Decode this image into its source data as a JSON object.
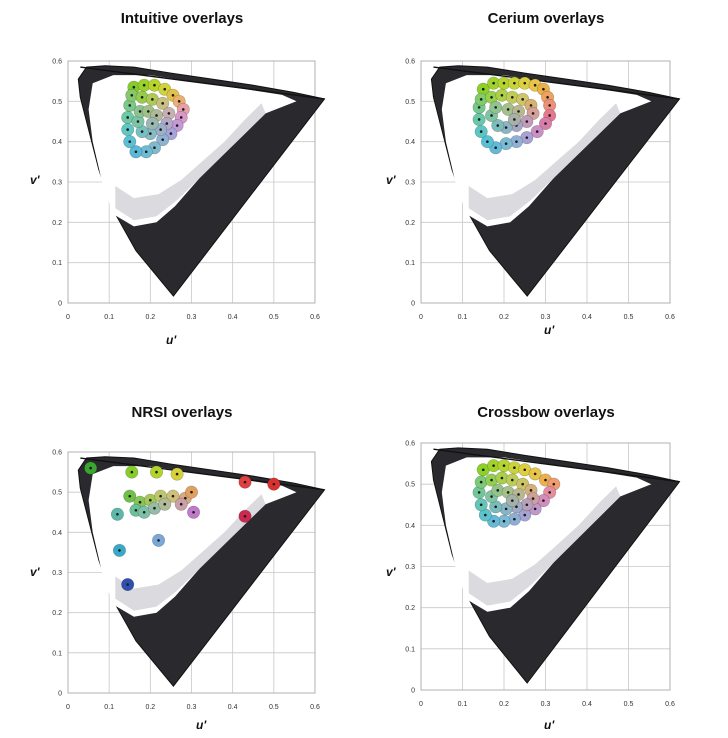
{
  "chart_data": [
    {
      "type": "scatter",
      "title": "Intuitive overlays",
      "xlabel": "u'",
      "ylabel": "v'",
      "xlim": [
        0,
        0.6
      ],
      "ylim": [
        0,
        0.6
      ],
      "xticks": [
        "0",
        "0.1",
        "0.2",
        "0.3",
        "0.4",
        "0.5",
        "0.6"
      ],
      "yticks": [
        "0",
        "0.1",
        "0.2",
        "0.3",
        "0.4",
        "0.5",
        "0.6"
      ],
      "grid": true,
      "points": [
        {
          "u": 0.16,
          "v": 0.535,
          "color": "#86cc2a"
        },
        {
          "u": 0.185,
          "v": 0.54,
          "color": "#9ad02a"
        },
        {
          "u": 0.21,
          "v": 0.54,
          "color": "#b6d42c"
        },
        {
          "u": 0.235,
          "v": 0.53,
          "color": "#d0d43a"
        },
        {
          "u": 0.255,
          "v": 0.515,
          "color": "#e2c04a"
        },
        {
          "u": 0.27,
          "v": 0.5,
          "color": "#eab070"
        },
        {
          "u": 0.28,
          "v": 0.48,
          "color": "#e6a0a8"
        },
        {
          "u": 0.275,
          "v": 0.46,
          "color": "#d898c8"
        },
        {
          "u": 0.265,
          "v": 0.44,
          "color": "#c49ad6"
        },
        {
          "u": 0.25,
          "v": 0.42,
          "color": "#a6a4d8"
        },
        {
          "u": 0.23,
          "v": 0.405,
          "color": "#90b2d2"
        },
        {
          "u": 0.21,
          "v": 0.385,
          "color": "#80bacc"
        },
        {
          "u": 0.19,
          "v": 0.375,
          "color": "#6ebcd4"
        },
        {
          "u": 0.165,
          "v": 0.375,
          "color": "#5ab8d8"
        },
        {
          "u": 0.15,
          "v": 0.4,
          "color": "#5cc0d2"
        },
        {
          "u": 0.145,
          "v": 0.43,
          "color": "#62c6c2"
        },
        {
          "u": 0.145,
          "v": 0.46,
          "color": "#6ccaa6"
        },
        {
          "u": 0.15,
          "v": 0.49,
          "color": "#7ac88a"
        },
        {
          "u": 0.155,
          "v": 0.515,
          "color": "#86c86a"
        },
        {
          "u": 0.18,
          "v": 0.51,
          "color": "#96cc4a"
        },
        {
          "u": 0.205,
          "v": 0.505,
          "color": "#b0c858"
        },
        {
          "u": 0.23,
          "v": 0.495,
          "color": "#c8c080"
        },
        {
          "u": 0.245,
          "v": 0.47,
          "color": "#c8b0b0"
        },
        {
          "u": 0.24,
          "v": 0.445,
          "color": "#b4a8c8"
        },
        {
          "u": 0.225,
          "v": 0.43,
          "color": "#9cb0c8"
        },
        {
          "u": 0.2,
          "v": 0.42,
          "color": "#86bac6"
        },
        {
          "u": 0.18,
          "v": 0.425,
          "color": "#78c0c0"
        },
        {
          "u": 0.17,
          "v": 0.45,
          "color": "#7cc4a8"
        },
        {
          "u": 0.175,
          "v": 0.475,
          "color": "#8cc490"
        },
        {
          "u": 0.195,
          "v": 0.475,
          "color": "#a0c08a"
        },
        {
          "u": 0.215,
          "v": 0.465,
          "color": "#b0b89c"
        },
        {
          "u": 0.205,
          "v": 0.445,
          "color": "#98b8b0"
        }
      ]
    },
    {
      "type": "scatter",
      "title": "Cerium overlays",
      "xlabel": "u'",
      "ylabel": "v'",
      "xlim": [
        0,
        0.6
      ],
      "ylim": [
        0,
        0.6
      ],
      "xticks": [
        "0",
        "0.1",
        "0.2",
        "0.3",
        "0.4",
        "0.5",
        "0.6"
      ],
      "yticks": [
        "0",
        "0.1",
        "0.2",
        "0.3",
        "0.4",
        "0.5",
        "0.6"
      ],
      "grid": true,
      "points": [
        {
          "u": 0.15,
          "v": 0.53,
          "color": "#8ed02a"
        },
        {
          "u": 0.175,
          "v": 0.545,
          "color": "#9ed22c"
        },
        {
          "u": 0.2,
          "v": 0.545,
          "color": "#b4d430"
        },
        {
          "u": 0.225,
          "v": 0.545,
          "color": "#c8d438"
        },
        {
          "u": 0.25,
          "v": 0.545,
          "color": "#dcd040"
        },
        {
          "u": 0.275,
          "v": 0.54,
          "color": "#e8c448"
        },
        {
          "u": 0.295,
          "v": 0.53,
          "color": "#ecb048"
        },
        {
          "u": 0.305,
          "v": 0.51,
          "color": "#f0a060"
        },
        {
          "u": 0.31,
          "v": 0.49,
          "color": "#ec9078"
        },
        {
          "u": 0.31,
          "v": 0.465,
          "color": "#e47890"
        },
        {
          "u": 0.3,
          "v": 0.445,
          "color": "#d87ca8"
        },
        {
          "u": 0.28,
          "v": 0.425,
          "color": "#c890c4"
        },
        {
          "u": 0.255,
          "v": 0.41,
          "color": "#a8a2d4"
        },
        {
          "u": 0.23,
          "v": 0.4,
          "color": "#90b0d4"
        },
        {
          "u": 0.205,
          "v": 0.395,
          "color": "#7cbad4"
        },
        {
          "u": 0.18,
          "v": 0.385,
          "color": "#62bad8"
        },
        {
          "u": 0.16,
          "v": 0.4,
          "color": "#58c0d4"
        },
        {
          "u": 0.145,
          "v": 0.425,
          "color": "#5cc6c4"
        },
        {
          "u": 0.14,
          "v": 0.455,
          "color": "#66caaa"
        },
        {
          "u": 0.14,
          "v": 0.485,
          "color": "#74ca8c"
        },
        {
          "u": 0.145,
          "v": 0.505,
          "color": "#80cc6c"
        },
        {
          "u": 0.17,
          "v": 0.51,
          "color": "#96d04c"
        },
        {
          "u": 0.195,
          "v": 0.515,
          "color": "#acd048"
        },
        {
          "u": 0.22,
          "v": 0.51,
          "color": "#c0cc58"
        },
        {
          "u": 0.245,
          "v": 0.505,
          "color": "#d0c468"
        },
        {
          "u": 0.265,
          "v": 0.49,
          "color": "#d8b070"
        },
        {
          "u": 0.27,
          "v": 0.47,
          "color": "#d4a098"
        },
        {
          "u": 0.255,
          "v": 0.45,
          "color": "#c09cb8"
        },
        {
          "u": 0.23,
          "v": 0.44,
          "color": "#a4a8c4"
        },
        {
          "u": 0.205,
          "v": 0.435,
          "color": "#8cb4c4"
        },
        {
          "u": 0.185,
          "v": 0.44,
          "color": "#7cbcbc"
        },
        {
          "u": 0.17,
          "v": 0.465,
          "color": "#80c4a4"
        },
        {
          "u": 0.18,
          "v": 0.485,
          "color": "#90c48c"
        },
        {
          "u": 0.21,
          "v": 0.48,
          "color": "#a4c08c"
        },
        {
          "u": 0.235,
          "v": 0.475,
          "color": "#b8b890"
        },
        {
          "u": 0.225,
          "v": 0.455,
          "color": "#a8b0a8"
        }
      ]
    },
    {
      "type": "scatter",
      "title": "NRSI overlays",
      "xlabel": "u'",
      "ylabel": "v'",
      "xlim": [
        0,
        0.6
      ],
      "ylim": [
        0,
        0.6
      ],
      "xticks": [
        "0",
        "0.1",
        "0.2",
        "0.3",
        "0.4",
        "0.5",
        "0.6"
      ],
      "yticks": [
        "0",
        "0.1",
        "0.2",
        "0.3",
        "0.4",
        "0.5",
        "0.6"
      ],
      "grid": true,
      "points": [
        {
          "u": 0.055,
          "v": 0.56,
          "color": "#3aa630"
        },
        {
          "u": 0.155,
          "v": 0.55,
          "color": "#88cc2a"
        },
        {
          "u": 0.215,
          "v": 0.55,
          "color": "#b2d22c"
        },
        {
          "u": 0.265,
          "v": 0.545,
          "color": "#d6d03a"
        },
        {
          "u": 0.43,
          "v": 0.525,
          "color": "#e04040"
        },
        {
          "u": 0.5,
          "v": 0.52,
          "color": "#dc3030"
        },
        {
          "u": 0.15,
          "v": 0.49,
          "color": "#70c048"
        },
        {
          "u": 0.175,
          "v": 0.475,
          "color": "#88c458"
        },
        {
          "u": 0.2,
          "v": 0.48,
          "color": "#a4c85a"
        },
        {
          "u": 0.225,
          "v": 0.49,
          "color": "#bcc66c"
        },
        {
          "u": 0.255,
          "v": 0.49,
          "color": "#cec078"
        },
        {
          "u": 0.285,
          "v": 0.485,
          "color": "#d8a880"
        },
        {
          "u": 0.3,
          "v": 0.5,
          "color": "#e0a060"
        },
        {
          "u": 0.275,
          "v": 0.47,
          "color": "#caa0a8"
        },
        {
          "u": 0.305,
          "v": 0.45,
          "color": "#c07ac8"
        },
        {
          "u": 0.43,
          "v": 0.44,
          "color": "#cc2850"
        },
        {
          "u": 0.165,
          "v": 0.455,
          "color": "#6cc098"
        },
        {
          "u": 0.185,
          "v": 0.45,
          "color": "#7cc0a8"
        },
        {
          "u": 0.21,
          "v": 0.46,
          "color": "#96bca8"
        },
        {
          "u": 0.235,
          "v": 0.47,
          "color": "#b0bc98"
        },
        {
          "u": 0.12,
          "v": 0.445,
          "color": "#5cb8a8"
        },
        {
          "u": 0.22,
          "v": 0.38,
          "color": "#7ca8d8"
        },
        {
          "u": 0.125,
          "v": 0.355,
          "color": "#3aa8c8"
        },
        {
          "u": 0.145,
          "v": 0.27,
          "color": "#3050b0"
        }
      ]
    },
    {
      "type": "scatter",
      "title": "Crossbow overlays",
      "xlabel": "u'",
      "ylabel": "v'",
      "xlim": [
        0,
        0.6
      ],
      "ylim": [
        0,
        0.6
      ],
      "xticks": [
        "0",
        "0.1",
        "0.2",
        "0.3",
        "0.4",
        "0.5",
        "0.6"
      ],
      "yticks": [
        "0",
        "0.1",
        "0.2",
        "0.3",
        "0.4",
        "0.5",
        "0.6"
      ],
      "grid": true,
      "points": [
        {
          "u": 0.15,
          "v": 0.535,
          "color": "#8cd02a"
        },
        {
          "u": 0.175,
          "v": 0.545,
          "color": "#a0d22c"
        },
        {
          "u": 0.2,
          "v": 0.545,
          "color": "#b6d430"
        },
        {
          "u": 0.225,
          "v": 0.54,
          "color": "#cad438"
        },
        {
          "u": 0.25,
          "v": 0.535,
          "color": "#dcd040"
        },
        {
          "u": 0.275,
          "v": 0.525,
          "color": "#e8c448"
        },
        {
          "u": 0.3,
          "v": 0.51,
          "color": "#ecb050"
        },
        {
          "u": 0.32,
          "v": 0.5,
          "color": "#ee9c70"
        },
        {
          "u": 0.31,
          "v": 0.48,
          "color": "#e48ca0"
        },
        {
          "u": 0.295,
          "v": 0.46,
          "color": "#d48cbc"
        },
        {
          "u": 0.275,
          "v": 0.44,
          "color": "#c098cc"
        },
        {
          "u": 0.25,
          "v": 0.425,
          "color": "#a4a4d4"
        },
        {
          "u": 0.225,
          "v": 0.415,
          "color": "#8cb0d4"
        },
        {
          "u": 0.2,
          "v": 0.41,
          "color": "#7abad4"
        },
        {
          "u": 0.175,
          "v": 0.41,
          "color": "#64bad6"
        },
        {
          "u": 0.155,
          "v": 0.425,
          "color": "#5cc2cc"
        },
        {
          "u": 0.145,
          "v": 0.45,
          "color": "#62c6b6"
        },
        {
          "u": 0.14,
          "v": 0.48,
          "color": "#70c898"
        },
        {
          "u": 0.145,
          "v": 0.505,
          "color": "#7cca78"
        },
        {
          "u": 0.17,
          "v": 0.51,
          "color": "#92ce54"
        },
        {
          "u": 0.195,
          "v": 0.515,
          "color": "#a8d04a"
        },
        {
          "u": 0.22,
          "v": 0.51,
          "color": "#bccc58"
        },
        {
          "u": 0.245,
          "v": 0.5,
          "color": "#ccc268"
        },
        {
          "u": 0.265,
          "v": 0.485,
          "color": "#d4b07a"
        },
        {
          "u": 0.27,
          "v": 0.465,
          "color": "#cca09c"
        },
        {
          "u": 0.255,
          "v": 0.45,
          "color": "#b8a0b8"
        },
        {
          "u": 0.23,
          "v": 0.445,
          "color": "#a0aac4"
        },
        {
          "u": 0.205,
          "v": 0.44,
          "color": "#8ab4c4"
        },
        {
          "u": 0.18,
          "v": 0.445,
          "color": "#7abcbc"
        },
        {
          "u": 0.17,
          "v": 0.47,
          "color": "#80c4a4"
        },
        {
          "u": 0.185,
          "v": 0.485,
          "color": "#92c48a"
        },
        {
          "u": 0.21,
          "v": 0.48,
          "color": "#a6c08a"
        },
        {
          "u": 0.235,
          "v": 0.475,
          "color": "#b8b890"
        },
        {
          "u": 0.22,
          "v": 0.46,
          "color": "#a4b0a8"
        }
      ]
    }
  ]
}
